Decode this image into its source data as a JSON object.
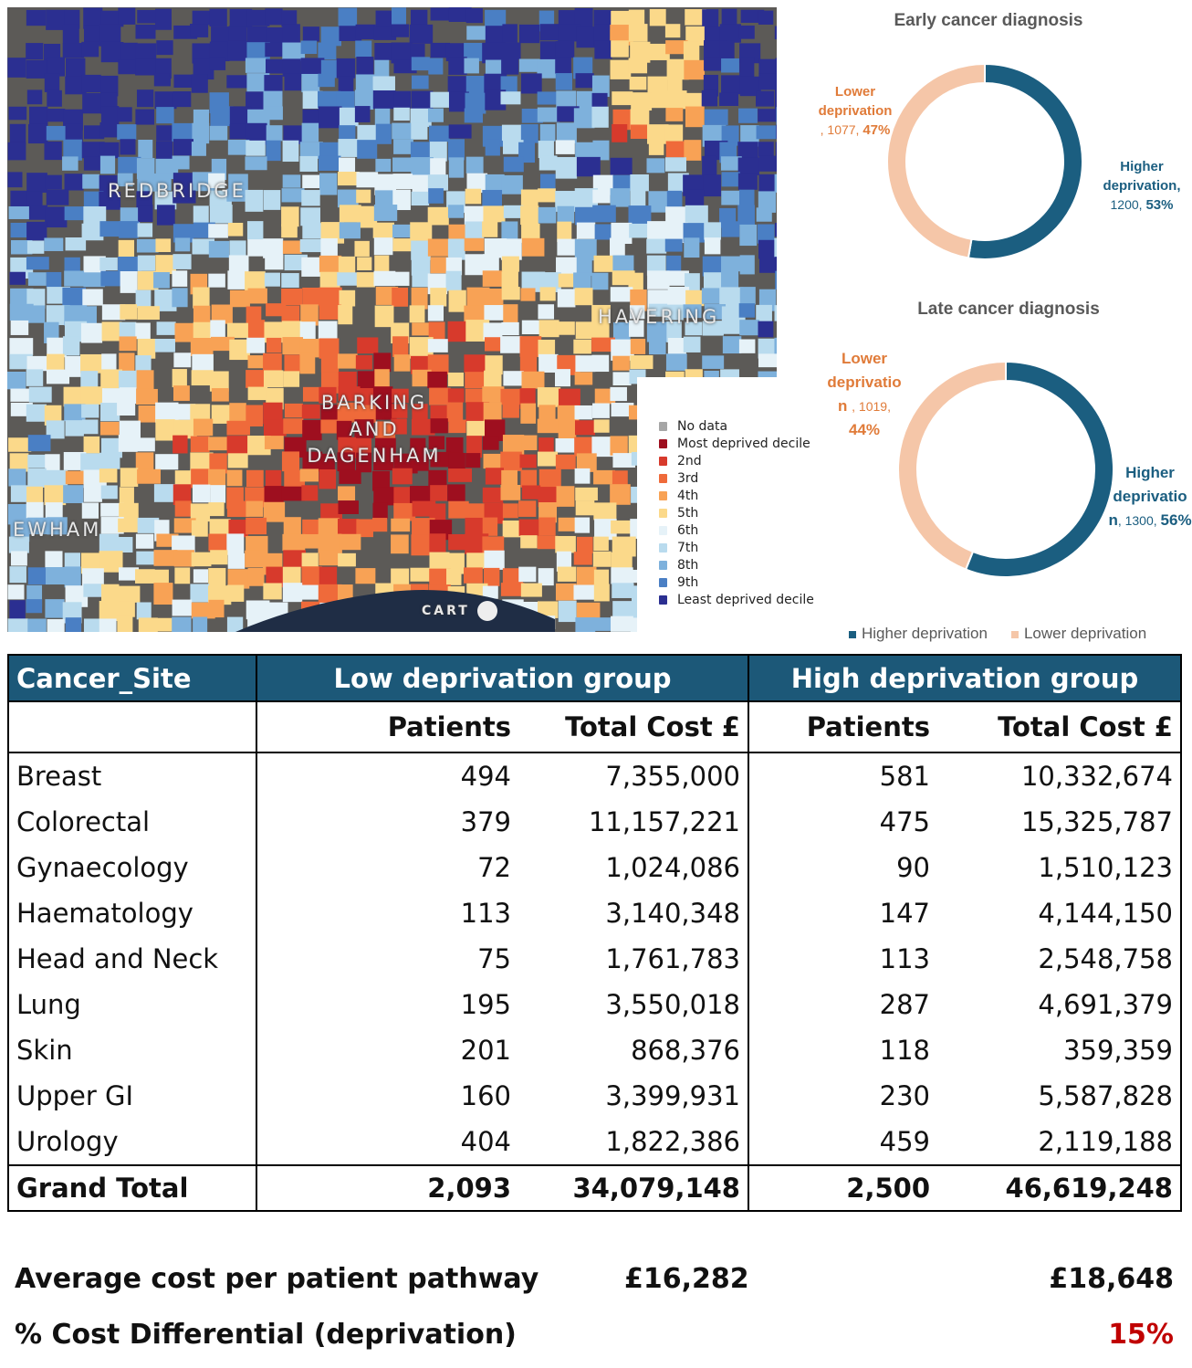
{
  "map": {
    "labels": {
      "redbridge": "REDBRIDGE",
      "havering": "HAVERING",
      "barking_l1": "BARKING",
      "barking_l2": "AND",
      "barking_l3": "DAGENHAM",
      "newham": "EWHAM",
      "attribution": "CART"
    },
    "legend": [
      {
        "label": "No data",
        "color": "#a6a6a6"
      },
      {
        "label": "Most deprived decile",
        "color": "#9e0f1f"
      },
      {
        "label": "2nd",
        "color": "#d73a2c"
      },
      {
        "label": "3rd",
        "color": "#ef6a3a"
      },
      {
        "label": "4th",
        "color": "#f8a255"
      },
      {
        "label": "5th",
        "color": "#fbd98a"
      },
      {
        "label": "6th",
        "color": "#e6f2f8"
      },
      {
        "label": "7th",
        "color": "#b9dbee"
      },
      {
        "label": "8th",
        "color": "#7eb1dc"
      },
      {
        "label": "9th",
        "color": "#4a7fc4"
      },
      {
        "label": "Least deprived decile",
        "color": "#2b2f91"
      }
    ]
  },
  "colors": {
    "higher": "#1b5e80",
    "lower": "#f5c6a8",
    "header": "#1c5878",
    "differential": "#c00000"
  },
  "chart_data": [
    {
      "type": "pie",
      "donut": true,
      "title": "Early cancer diagnosis",
      "slices": [
        {
          "name": "Higher deprivation",
          "value": 1200,
          "percent": "53%"
        },
        {
          "name": "Lower deprivation",
          "value": 1077,
          "percent": "47%"
        }
      ]
    },
    {
      "type": "pie",
      "donut": true,
      "title": "Late cancer diagnosis",
      "slices": [
        {
          "name": "Higher deprivation",
          "value": 1300,
          "percent": "56%"
        },
        {
          "name": "Lower deprivation",
          "value": 1019,
          "percent": "44%"
        }
      ]
    },
    {
      "type": "table",
      "header": {
        "site": "Cancer_Site",
        "low": "Low deprivation group",
        "high": "High deprivation group",
        "patients": "Patients",
        "cost": "Total Cost £"
      },
      "rows": [
        [
          "Breast",
          "494",
          "7,355,000",
          "581",
          "10,332,674"
        ],
        [
          "Colorectal",
          "379",
          "11,157,221",
          "475",
          "15,325,787"
        ],
        [
          "Gynaecology",
          "72",
          "1,024,086",
          "90",
          "1,510,123"
        ],
        [
          "Haematology",
          "113",
          "3,140,348",
          "147",
          "4,144,150"
        ],
        [
          "Head and Neck",
          "75",
          "1,761,783",
          "113",
          "2,548,758"
        ],
        [
          "Lung",
          "195",
          "3,550,018",
          "287",
          "4,691,379"
        ],
        [
          "Skin",
          "201",
          "868,376",
          "118",
          "359,359"
        ],
        [
          "Upper GI",
          "160",
          "3,399,931",
          "230",
          "5,587,828"
        ],
        [
          "Urology",
          "404",
          "1,822,386",
          "459",
          "2,119,188"
        ]
      ],
      "total": [
        "Grand Total",
        "2,093",
        "34,079,148",
        "2,500",
        "46,619,248"
      ]
    }
  ],
  "legend": {
    "higher": "Higher deprivation",
    "lower": "Lower deprivation"
  },
  "labels": {
    "early_lower_1": "Lower",
    "early_lower_2": "deprivation",
    "early_lower_n": ", 1077, ",
    "early_lower_p": "47%",
    "early_higher_1": "Higher",
    "early_higher_2": "deprivation,",
    "early_higher_n": "1200, ",
    "early_higher_p": "53%",
    "late_lower_1": "Lower",
    "late_lower_2": "deprivatio",
    "late_lower_3": "n ",
    "late_lower_n": ", 1019,",
    "late_lower_p": "44%",
    "late_higher_1": "Higher",
    "late_higher_2": "deprivatio",
    "late_higher_3": "n",
    "late_higher_n": ", 1300, ",
    "late_higher_p": "56%"
  },
  "summary": {
    "avg_label": "Average cost per patient pathway",
    "avg_low": "£16,282",
    "avg_high": "£18,648",
    "diff_label": "% Cost  Differential (deprivation)",
    "diff_value": "15%"
  }
}
